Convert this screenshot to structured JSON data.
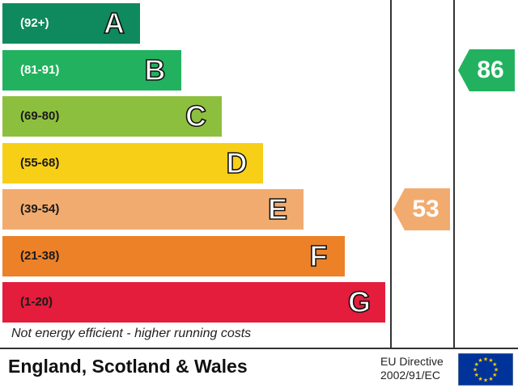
{
  "chart_data": {
    "type": "table",
    "title": "",
    "bands": [
      {
        "letter": "A",
        "range": "(92+)",
        "color": "#0f8a5f",
        "dark": true
      },
      {
        "letter": "B",
        "range": "(81-91)",
        "color": "#22b25f",
        "dark": true
      },
      {
        "letter": "C",
        "range": "(69-80)",
        "color": "#8dbf3f",
        "dark": false
      },
      {
        "letter": "D",
        "range": "(55-68)",
        "color": "#f7cf17",
        "dark": false
      },
      {
        "letter": "E",
        "range": "(39-54)",
        "color": "#f2ab6f",
        "dark": false
      },
      {
        "letter": "F",
        "range": "(21-38)",
        "color": "#ec8128",
        "dark": false
      },
      {
        "letter": "G",
        "range": "(1-20)",
        "color": "#e31d3b",
        "dark": false
      }
    ],
    "current_rating": {
      "value": 53,
      "band": "E",
      "color": "#f2ab6f"
    },
    "potential_rating": {
      "value": 86,
      "band": "B",
      "color": "#22b25f"
    }
  },
  "footnote": "Not energy efficient - higher running costs",
  "region": "England, Scotland & Wales",
  "directive": {
    "line1": "EU Directive",
    "line2": "2002/91/EC"
  },
  "flag_colors": {
    "background": "#003399",
    "stars": "#ffcc00"
  }
}
